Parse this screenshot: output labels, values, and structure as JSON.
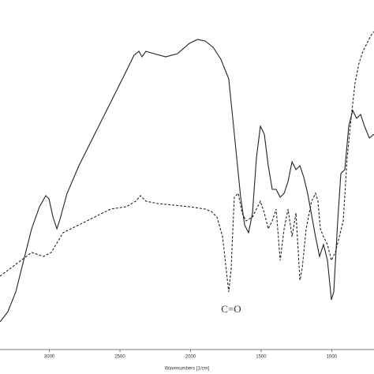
{
  "chart_data": {
    "type": "line",
    "x_label": "Wavenumbers [1/cm]",
    "annotation": "C=O",
    "xlim": [
      3350,
      700
    ],
    "ylim": [
      0,
      450
    ],
    "xticks": [
      3000,
      2500,
      2000,
      1500,
      1000
    ],
    "series": [
      {
        "color": "#222222",
        "dashed": false,
        "x": [
          3350,
          3294,
          3238,
          3182,
          3126,
          3070,
          3026,
          3003,
          2975,
          2947,
          2925,
          2875,
          2791,
          2679,
          2567,
          2455,
          2400,
          2366,
          2344,
          2316,
          2260,
          2176,
          2092,
          2008,
          1952,
          1896,
          1840,
          1785,
          1729,
          1701,
          1673,
          1645,
          1617,
          1589,
          1561,
          1533,
          1505,
          1477,
          1449,
          1421,
          1393,
          1365,
          1337,
          1309,
          1281,
          1253,
          1225,
          1197,
          1170,
          1114,
          1086,
          1058,
          1030,
          1002,
          985,
          957,
          935,
          907,
          879,
          851,
          823,
          795,
          767,
          733,
          700
        ],
        "values": [
          42,
          55,
          80,
          120,
          160,
          188,
          202,
          198,
          175,
          160,
          172,
          205,
          240,
          280,
          320,
          360,
          380,
          385,
          378,
          385,
          382,
          378,
          382,
          395,
          400,
          398,
          390,
          375,
          350,
          300,
          250,
          200,
          165,
          155,
          180,
          250,
          290,
          280,
          240,
          210,
          210,
          200,
          205,
          220,
          245,
          235,
          240,
          225,
          205,
          150,
          125,
          140,
          120,
          70,
          80,
          170,
          230,
          235,
          290,
          310,
          300,
          305,
          290,
          275,
          280
        ]
      },
      {
        "color": "#222222",
        "dashed": true,
        "x": [
          3350,
          3238,
          3126,
          3042,
          2987,
          2903,
          2791,
          2679,
          2567,
          2455,
          2388,
          2355,
          2316,
          2232,
          2120,
          2008,
          1896,
          1852,
          1813,
          1773,
          1745,
          1729,
          1712,
          1690,
          1662,
          1634,
          1606,
          1561,
          1533,
          1505,
          1477,
          1449,
          1421,
          1393,
          1365,
          1337,
          1309,
          1281,
          1253,
          1225,
          1209,
          1181,
          1142,
          1114,
          1097,
          1080,
          1058,
          1030,
          1002,
          974,
          946,
          918,
          890,
          862,
          834,
          806,
          778,
          750,
          722,
          700
        ],
        "values": [
          100,
          115,
          130,
          125,
          130,
          155,
          165,
          175,
          185,
          188,
          195,
          202,
          195,
          192,
          190,
          188,
          185,
          182,
          175,
          150,
          105,
          80,
          110,
          200,
          205,
          180,
          170,
          175,
          185,
          195,
          180,
          160,
          170,
          185,
          120,
          160,
          185,
          150,
          180,
          95,
          110,
          160,
          195,
          205,
          195,
          160,
          150,
          140,
          120,
          130,
          150,
          170,
          250,
          300,
          345,
          370,
          385,
          395,
          405,
          410
        ]
      }
    ]
  }
}
